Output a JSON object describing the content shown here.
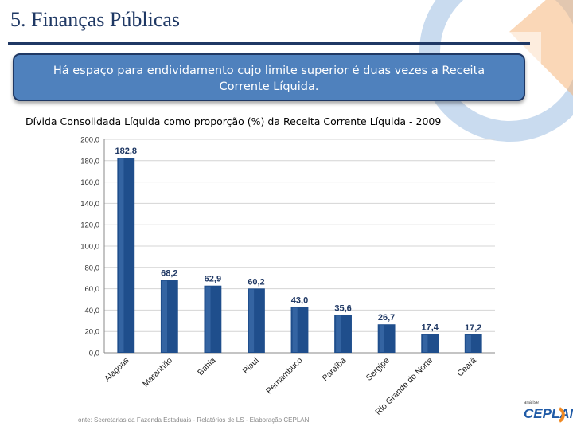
{
  "slide": {
    "title": "5. Finanças Públicas",
    "callout": "Há espaço para endividamento cujo limite superior  é duas vezes a Receita Corrente Líquida.",
    "source": "onte: Secretarias da Fazenda Estaduais - Relatórios de LS - Elaboração CEPLAN",
    "logo_small": "análise",
    "logo_text": "CEPLAN"
  },
  "colors": {
    "title": "#1f3864",
    "callout_bg": "#4f81bd",
    "bar": "#1f4e8c",
    "bar_light": "#4a7ab8",
    "label": "#1f3864",
    "deco_blue": "#c9dbef",
    "deco_orange": "#f6b77c"
  },
  "chart_data": {
    "type": "bar",
    "title": "Dívida Consolidada Líquida como proporção (%) da Receita Corrente Líquida - 2009",
    "categories": [
      "Alagoas",
      "Maranhão",
      "Bahia",
      "Piauí",
      "Pernambuco",
      "Paraíba",
      "Sergipe",
      "Rio Grande do Norte",
      "Ceará"
    ],
    "values": [
      182.8,
      68.2,
      62.9,
      60.2,
      43.0,
      35.6,
      26.7,
      17.4,
      17.2
    ],
    "value_labels": [
      "182,8",
      "68,2",
      "62,9",
      "60,2",
      "43,0",
      "35,6",
      "26,7",
      "17,4",
      "17,2"
    ],
    "yticks": [
      "0,0",
      "20,0",
      "40,0",
      "60,0",
      "80,0",
      "100,0",
      "120,0",
      "140,0",
      "160,0",
      "180,0",
      "200,0"
    ],
    "ylim": [
      0,
      200
    ],
    "xlabel": "",
    "ylabel": "",
    "grid": true
  }
}
